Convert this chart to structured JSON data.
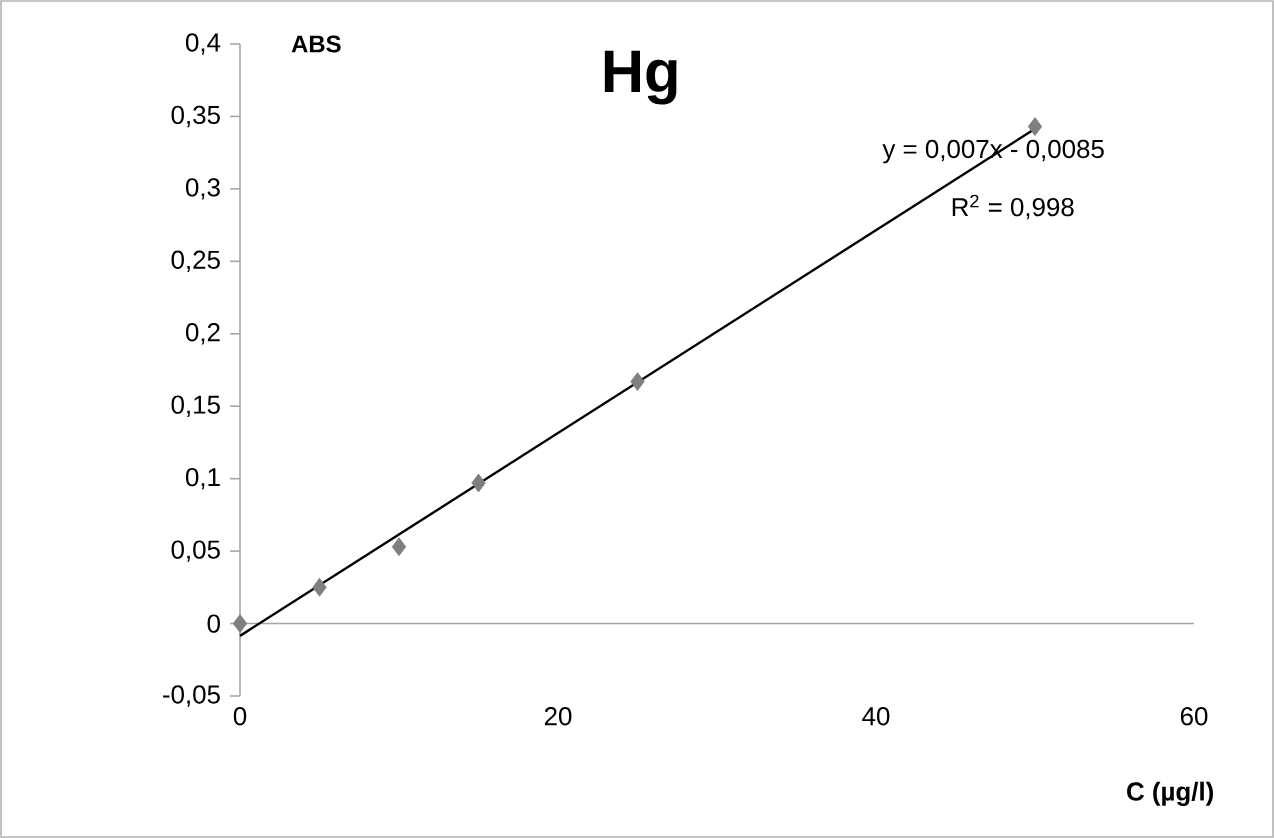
{
  "chart_data": {
    "type": "scatter",
    "title": "Hg",
    "xlabel": "C (µg/l)",
    "ylabel": "ABS",
    "xlim": [
      0,
      60
    ],
    "xticks": [
      0,
      20,
      40,
      60
    ],
    "ylim": [
      -0.05,
      0.4
    ],
    "yticks": [
      {
        "value": -0.05,
        "label": "-0,05"
      },
      0,
      {
        "value": 0.05,
        "label": "0,05"
      },
      {
        "value": 0.1,
        "label": "0,1"
      },
      {
        "value": 0.15,
        "label": "0,15"
      },
      {
        "value": 0.2,
        "label": "0,2"
      },
      {
        "value": 0.25,
        "label": "0,25"
      },
      {
        "value": 0.3,
        "label": "0,3"
      },
      {
        "value": 0.35,
        "label": "0,35"
      },
      {
        "value": 0.4,
        "label": "0,4"
      }
    ],
    "series": [
      {
        "type": "scatter",
        "color": "#7f7f7f",
        "marker": "diamond",
        "x": [
          0,
          5,
          10,
          15,
          25,
          50
        ],
        "values": [
          0,
          0.025,
          0.053,
          0.097,
          0.167,
          0.343
        ]
      },
      {
        "type": "line",
        "color": "#000000",
        "marker": "none",
        "line_style": "solid",
        "x": [
          0,
          50
        ],
        "values": [
          -0.0085,
          0.3415
        ]
      }
    ],
    "annotations": [
      "y = 0,007x - 0,0085",
      "R$^{2}$ = 0,998"
    ]
  }
}
